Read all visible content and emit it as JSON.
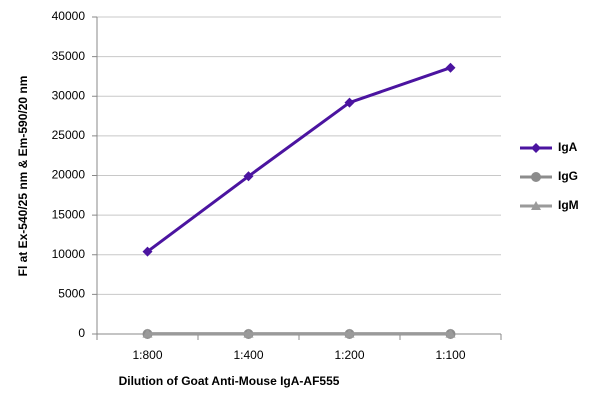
{
  "chart_data": {
    "type": "line",
    "x_label": "Dilution of Goat Anti-Mouse IgA-AF555",
    "y_label": "Fl at Ex-540/25 nm & Em-590/20 nm",
    "categories": [
      "1:800",
      "1:400",
      "1:200",
      "1:100"
    ],
    "series": [
      {
        "name": "IgA",
        "color": "#4b14a0",
        "marker": "diamond",
        "values": [
          10400,
          19900,
          29200,
          33600
        ]
      },
      {
        "name": "IgG",
        "color": "#8c8c8c",
        "marker": "circle",
        "values": [
          0,
          0,
          0,
          0
        ]
      },
      {
        "name": "IgM",
        "color": "#9a9a9a",
        "marker": "triangle",
        "values": [
          50,
          50,
          50,
          50
        ]
      }
    ],
    "ylim": [
      0,
      40000
    ],
    "yticks": [
      0,
      5000,
      10000,
      15000,
      20000,
      25000,
      30000,
      35000,
      40000
    ],
    "grid": true,
    "legend": "right"
  }
}
